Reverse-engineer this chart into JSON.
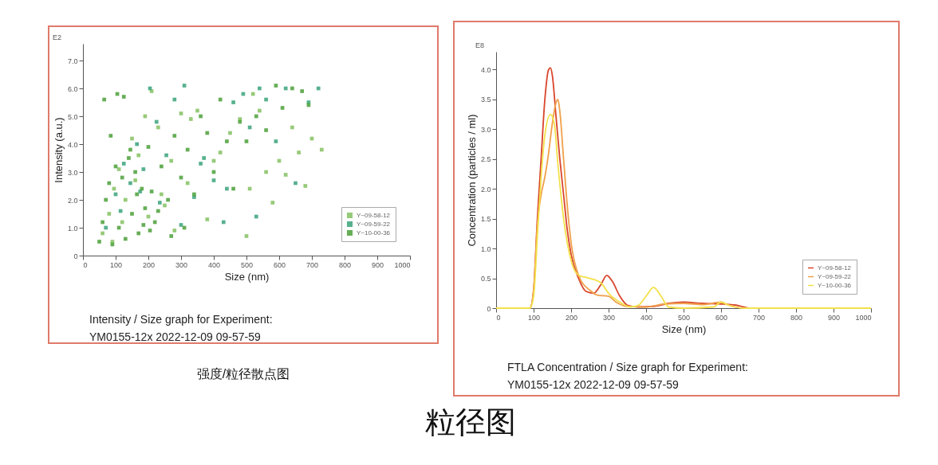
{
  "chart_data": [
    {
      "type": "scatter",
      "xlabel": "Size (nm)",
      "ylabel": "Intensity (a.u.)",
      "annotations": [
        "E2",
        "Intensity / Size graph for Experiment:",
        "YM0155-12x 2022-12-09 09-57-59",
        "强度/粒径散点图"
      ],
      "xlim": [
        0,
        1000
      ],
      "ylim": [
        0,
        7.6
      ],
      "xticks": [
        0,
        100,
        200,
        300,
        400,
        500,
        600,
        700,
        800,
        900,
        1000
      ],
      "yticks": [
        0,
        {
          "value": 1,
          "label": "1.0"
        },
        {
          "value": 2,
          "label": "2.0"
        },
        {
          "value": 3,
          "label": "3.0"
        },
        {
          "value": 4,
          "label": "4.0"
        },
        {
          "value": 5,
          "label": "5.0"
        },
        {
          "value": 6,
          "label": "6.0"
        },
        {
          "value": 7,
          "label": "7.0"
        }
      ],
      "grid": false,
      "legend": "bottom right",
      "marker": "square",
      "series": [
        {
          "name": "Y~09-58-12",
          "color": "#8cc46a",
          "x": [
            60,
            80,
            95,
            110,
            130,
            150,
            170,
            190,
            210,
            230,
            250,
            270,
            300,
            330,
            350,
            380,
            420,
            450,
            480,
            500,
            520,
            540,
            560,
            600,
            620,
            640,
            660,
            680,
            700,
            730,
            90,
            120,
            160,
            200,
            240,
            280,
            320,
            400,
            510,
            580
          ],
          "values": [
            0.8,
            1.5,
            2.4,
            3.1,
            2.0,
            4.2,
            3.6,
            5.0,
            5.9,
            4.6,
            1.8,
            3.4,
            5.1,
            4.9,
            5.2,
            1.3,
            3.7,
            4.4,
            4.9,
            0.7,
            5.8,
            5.2,
            3.0,
            3.4,
            2.9,
            4.6,
            3.7,
            2.5,
            4.2,
            3.8,
            0.5,
            1.2,
            2.7,
            1.4,
            2.2,
            0.9,
            2.6,
            3.4,
            2.4,
            1.9
          ]
        },
        {
          "name": "Y~09-59-22",
          "color": "#45a882",
          "x": [
            70,
            100,
            125,
            145,
            165,
            185,
            205,
            225,
            255,
            280,
            310,
            340,
            370,
            400,
            430,
            460,
            490,
            510,
            540,
            560,
            590,
            620,
            650,
            690,
            720,
            115,
            175,
            235,
            300,
            360,
            440,
            530
          ],
          "values": [
            1.0,
            2.2,
            3.3,
            2.6,
            4.0,
            3.1,
            6.0,
            4.8,
            3.6,
            5.6,
            6.1,
            2.1,
            3.5,
            2.7,
            1.2,
            5.5,
            5.8,
            4.6,
            6.0,
            5.6,
            4.1,
            6.0,
            2.6,
            5.5,
            6.0,
            1.6,
            2.3,
            1.9,
            1.1,
            3.3,
            2.4,
            1.4
          ]
        },
        {
          "name": "Y~10-00-36",
          "color": "#55a544",
          "x": [
            50,
            60,
            70,
            80,
            90,
            100,
            110,
            120,
            130,
            140,
            150,
            160,
            170,
            180,
            190,
            200,
            210,
            220,
            240,
            260,
            280,
            300,
            320,
            340,
            360,
            380,
            400,
            420,
            440,
            460,
            480,
            500,
            530,
            560,
            590,
            610,
            640,
            670,
            690,
            65,
            85,
            105,
            125,
            145,
            165,
            185,
            205,
            230,
            270,
            310
          ],
          "values": [
            0.5,
            1.2,
            2.0,
            2.6,
            0.4,
            3.2,
            1.0,
            2.8,
            0.6,
            3.5,
            1.5,
            3.0,
            0.8,
            2.4,
            1.7,
            3.9,
            2.3,
            1.2,
            3.2,
            2.0,
            4.3,
            2.8,
            3.8,
            2.2,
            5.0,
            4.4,
            3.0,
            5.6,
            4.1,
            2.4,
            4.8,
            4.1,
            5.0,
            4.5,
            6.1,
            5.3,
            6.0,
            5.9,
            5.4,
            5.6,
            4.3,
            5.8,
            5.7,
            3.8,
            2.2,
            1.1,
            0.9,
            1.6,
            0.7,
            1.0
          ]
        }
      ]
    },
    {
      "type": "line",
      "xlabel": "Size (nm)",
      "ylabel": "Concentration (particles / ml)",
      "annotations": [
        "E8",
        "FTLA Concentration / Size graph for Experiment:",
        "YM0155-12x 2022-12-09 09-57-59",
        "粒径图"
      ],
      "xlim": [
        0,
        1000
      ],
      "ylim": [
        0,
        4.3
      ],
      "xticks": [
        0,
        100,
        200,
        300,
        400,
        500,
        600,
        700,
        800,
        900,
        1000
      ],
      "yticks": [
        0,
        {
          "value": 0.5,
          "label": "0.5"
        },
        {
          "value": 1,
          "label": "1.0"
        },
        {
          "value": 1.5,
          "label": "1.5"
        },
        {
          "value": 2,
          "label": "2.0"
        },
        {
          "value": 2.5,
          "label": "2.5"
        },
        {
          "value": 3,
          "label": "3.0"
        },
        {
          "value": 3.5,
          "label": "3.5"
        },
        {
          "value": 4,
          "label": "4.0"
        }
      ],
      "grid": false,
      "legend": "bottom right",
      "marker": "none",
      "line_style": "solid",
      "series": [
        {
          "name": "Y~09-58-12",
          "color": "#d9452b",
          "x": [
            0,
            90,
            100,
            110,
            120,
            130,
            140,
            145,
            150,
            160,
            170,
            180,
            190,
            200,
            220,
            240,
            260,
            280,
            295,
            310,
            330,
            350,
            380,
            420,
            460,
            500,
            550,
            600,
            640,
            680,
            1000
          ],
          "values": [
            0,
            0,
            0.3,
            1.5,
            2.5,
            3.5,
            4.0,
            4.03,
            3.9,
            3.2,
            2.5,
            1.9,
            1.3,
            0.9,
            0.5,
            0.28,
            0.25,
            0.4,
            0.55,
            0.45,
            0.2,
            0.05,
            0.02,
            0.03,
            0.08,
            0.1,
            0.08,
            0.07,
            0.05,
            0,
            0
          ]
        },
        {
          "name": "Y~09-59-22",
          "color": "#f0a04b",
          "x": [
            0,
            90,
            100,
            110,
            120,
            130,
            140,
            150,
            160,
            165,
            170,
            180,
            190,
            200,
            220,
            250,
            270,
            300,
            320,
            350,
            400,
            450,
            500,
            550,
            600,
            620,
            660,
            1000
          ],
          "values": [
            0,
            0,
            0.3,
            1.4,
            1.9,
            2.2,
            2.6,
            3.1,
            3.45,
            3.5,
            3.3,
            2.5,
            1.7,
            1.1,
            0.55,
            0.3,
            0.22,
            0.2,
            0.1,
            0.03,
            0.02,
            0.07,
            0.08,
            0.06,
            0.1,
            0.05,
            0,
            0
          ]
        },
        {
          "name": "Y~10-00-36",
          "color": "#f2e14a",
          "x": [
            0,
            90,
            100,
            110,
            120,
            130,
            145,
            155,
            165,
            180,
            200,
            220,
            250,
            280,
            300,
            330,
            360,
            380,
            400,
            420,
            440,
            460,
            500,
            580,
            600,
            620,
            660,
            1000
          ],
          "values": [
            0,
            0,
            0.2,
            1.2,
            2.2,
            2.9,
            3.25,
            3.1,
            2.4,
            1.5,
            0.8,
            0.55,
            0.5,
            0.42,
            0.25,
            0.1,
            0.02,
            0.05,
            0.2,
            0.35,
            0.2,
            0.02,
            0,
            0.02,
            0.1,
            0.05,
            0,
            0
          ]
        }
      ]
    }
  ]
}
